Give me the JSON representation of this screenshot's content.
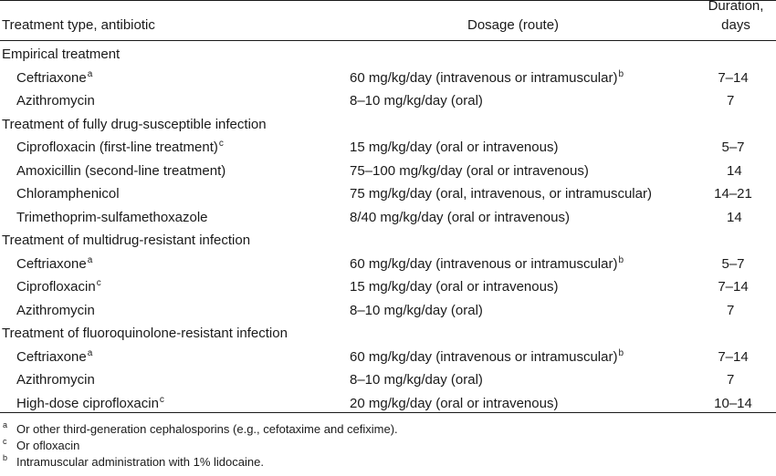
{
  "header": {
    "type": "Treatment type, antibiotic",
    "dosage": "Dosage (route)",
    "duration_line1": "Duration,",
    "duration_line2": "days"
  },
  "rows": [
    {
      "kind": "group",
      "name": "Empirical treatment"
    },
    {
      "kind": "item",
      "name": "Ceftriaxone",
      "name_mark": "a",
      "dose": "60 mg/kg/day (intravenous or intramuscular)",
      "dose_mark": "b",
      "duration": "7–14"
    },
    {
      "kind": "item",
      "name": "Azithromycin",
      "dose": "8–10 mg/kg/day (oral)",
      "duration": "7"
    },
    {
      "kind": "group",
      "name": "Treatment of fully drug-susceptible infection"
    },
    {
      "kind": "item",
      "name": "Ciprofloxacin (first-line treatment)",
      "name_mark": "c",
      "dose": "15 mg/kg/day (oral or intravenous)",
      "duration": "5–7"
    },
    {
      "kind": "item",
      "name": "Amoxicillin (second-line treatment)",
      "dose": "75–100 mg/kg/day (oral or intravenous)",
      "duration": "14"
    },
    {
      "kind": "item",
      "name": "Chloramphenicol",
      "dose": "75 mg/kg/day (oral, intravenous, or intramuscular)",
      "duration": "14–21"
    },
    {
      "kind": "item",
      "name": "Trimethoprim-sulfamethoxazole",
      "dose": "8/40 mg/kg/day (oral or intravenous)",
      "duration": "14"
    },
    {
      "kind": "group",
      "name": "Treatment of multidrug-resistant infection"
    },
    {
      "kind": "item",
      "name": "Ceftriaxone",
      "name_mark": "a",
      "dose": "60 mg/kg/day (intravenous or intramuscular)",
      "dose_mark": "b",
      "duration": "5–7"
    },
    {
      "kind": "item",
      "name": "Ciprofloxacin",
      "name_mark": "c",
      "dose": "15 mg/kg/day (oral or intravenous)",
      "duration": "7–14"
    },
    {
      "kind": "item",
      "name": "Azithromycin",
      "dose": "8–10 mg/kg/day (oral)",
      "duration": "7"
    },
    {
      "kind": "group",
      "name": "Treatment of fluoroquinolone-resistant infection"
    },
    {
      "kind": "item",
      "name": "Ceftriaxone",
      "name_mark": "a",
      "dose": "60 mg/kg/day (intravenous or intramuscular)",
      "dose_mark": "b",
      "duration": "7–14"
    },
    {
      "kind": "item",
      "name": "Azithromycin",
      "dose": "8–10 mg/kg/day (oral)",
      "duration": "7"
    },
    {
      "kind": "item",
      "name": "High-dose ciprofloxacin",
      "name_mark": "c",
      "dose": "20 mg/kg/day (oral or intravenous)",
      "duration": "10–14"
    }
  ],
  "footnotes": [
    {
      "mark": "a",
      "text": "Or other third-generation cephalosporins (e.g., cefotaxime and cefixime)."
    },
    {
      "mark": "c",
      "text": "Or ofloxacin"
    },
    {
      "mark": "b",
      "text": "Intramuscular administration with 1% lidocaine."
    }
  ]
}
